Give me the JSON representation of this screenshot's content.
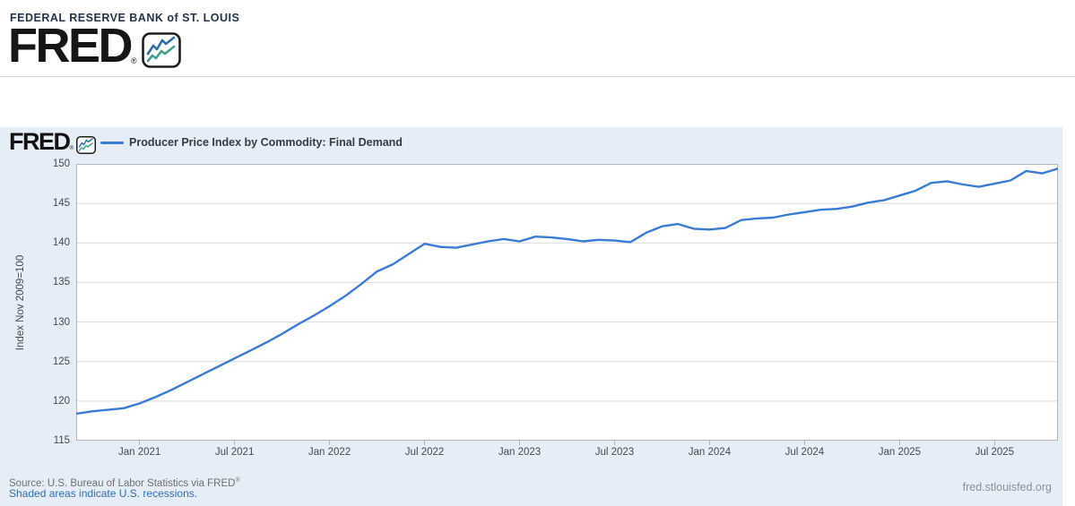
{
  "site_header": {
    "bank_name": "FEDERAL RESERVE BANK of ST. LOUIS",
    "logo_text": "FRED",
    "registered": "®"
  },
  "chart": {
    "mini_logo_text": "FRED",
    "registered": "®",
    "legend_label": "Producer Price Index by Commodity: Final Demand",
    "y_axis_title": "Index Nov 2009=100"
  },
  "footer": {
    "source_text": "Source: U.S. Bureau of Labor Statistics via FRED",
    "registered": "®",
    "recession_note": "Shaded areas indicate U.S. recessions.",
    "site_url": "fred.stlouisfed.org"
  },
  "colors": {
    "line": "#3a7bd5",
    "link": "#2f6cb6",
    "band_bg": "#e5eef7",
    "grid": "#d9d9d9",
    "border": "#b6b6b6"
  },
  "chart_data": {
    "type": "line",
    "title": "Producer Price Index by Commodity: Final Demand",
    "ylabel": "Index Nov 2009=100",
    "frequency": "monthly",
    "start": "2020-09",
    "end": "2025-11",
    "ylim": [
      115,
      150
    ],
    "y_ticks": [
      115,
      120,
      125,
      130,
      135,
      140,
      145,
      150
    ],
    "x_ticks": [
      {
        "label": "Jan 2021",
        "month_index": 4
      },
      {
        "label": "Jul 2021",
        "month_index": 10
      },
      {
        "label": "Jan 2022",
        "month_index": 16
      },
      {
        "label": "Jul 2022",
        "month_index": 22
      },
      {
        "label": "Jan 2023",
        "month_index": 28
      },
      {
        "label": "Jul 2023",
        "month_index": 34
      },
      {
        "label": "Jan 2024",
        "month_index": 40
      },
      {
        "label": "Jul 2024",
        "month_index": 46
      },
      {
        "label": "Jan 2025",
        "month_index": 52
      },
      {
        "label": "Jul 2025",
        "month_index": 58
      }
    ],
    "values": [
      118.4,
      118.7,
      118.9,
      119.1,
      119.7,
      120.5,
      121.4,
      122.4,
      123.4,
      124.4,
      125.4,
      126.4,
      127.4,
      128.5,
      129.7,
      130.8,
      132.0,
      133.3,
      134.8,
      136.4,
      137.3,
      138.6,
      139.9,
      139.5,
      139.4,
      139.8,
      140.2,
      140.5,
      140.2,
      140.8,
      140.7,
      140.5,
      140.2,
      140.4,
      140.3,
      140.1,
      141.3,
      142.1,
      142.4,
      141.8,
      141.7,
      141.9,
      142.9,
      143.1,
      143.2,
      143.6,
      143.9,
      144.2,
      144.3,
      144.6,
      145.1,
      145.4,
      146.0,
      146.6,
      147.6,
      147.8,
      147.4,
      147.1,
      147.5,
      147.9,
      149.1,
      148.8,
      149.4
    ]
  }
}
